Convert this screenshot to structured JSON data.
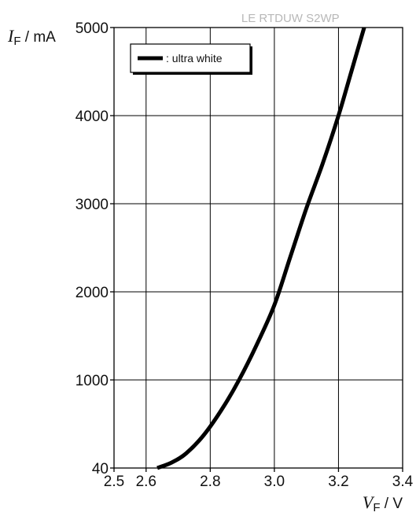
{
  "chart_data": {
    "type": "line",
    "title": "LE RTDUW S2WP",
    "xlabel": {
      "symbol": "V",
      "subscript": "F",
      "unit": " / V"
    },
    "ylabel": {
      "symbol": "I",
      "subscript": "F",
      "unit": " / mA"
    },
    "xlim": [
      2.5,
      3.4
    ],
    "ylim_bands": [
      {
        "from": 40,
        "to": 1000
      },
      {
        "from": 1000,
        "to": 5000
      }
    ],
    "x_ticks": [
      {
        "value": 2.5,
        "label": "2.5"
      },
      {
        "value": 2.6,
        "label": "2.6"
      },
      {
        "value": 2.8,
        "label": "2.8"
      },
      {
        "value": 3.0,
        "label": "3.0"
      },
      {
        "value": 3.2,
        "label": "3.2"
      },
      {
        "value": 3.4,
        "label": "3.4"
      }
    ],
    "x_gridlines": [
      2.6,
      2.8,
      3.0,
      3.2
    ],
    "y_ticks": [
      {
        "value": 40,
        "label": "40"
      },
      {
        "value": 1000,
        "label": "1000"
      },
      {
        "value": 2000,
        "label": "2000"
      },
      {
        "value": 3000,
        "label": "3000"
      },
      {
        "value": 4000,
        "label": "4000"
      },
      {
        "value": 5000,
        "label": "5000"
      }
    ],
    "grid": true,
    "legend": {
      "position": "top-left",
      "entries": [
        ": ultra white"
      ]
    },
    "series": [
      {
        "name": ": ultra white",
        "color": "#000000",
        "points": [
          {
            "x": 2.635,
            "y": 40
          },
          {
            "x": 2.68,
            "y": 100
          },
          {
            "x": 2.725,
            "y": 200
          },
          {
            "x": 2.78,
            "y": 400
          },
          {
            "x": 2.84,
            "y": 700
          },
          {
            "x": 2.89,
            "y": 1000
          },
          {
            "x": 2.945,
            "y": 1400
          },
          {
            "x": 3.0,
            "y": 1850
          },
          {
            "x": 3.05,
            "y": 2400
          },
          {
            "x": 3.1,
            "y": 2950
          },
          {
            "x": 3.15,
            "y": 3450
          },
          {
            "x": 3.2,
            "y": 4000
          },
          {
            "x": 3.24,
            "y": 4500
          },
          {
            "x": 3.28,
            "y": 5000
          }
        ]
      }
    ]
  }
}
